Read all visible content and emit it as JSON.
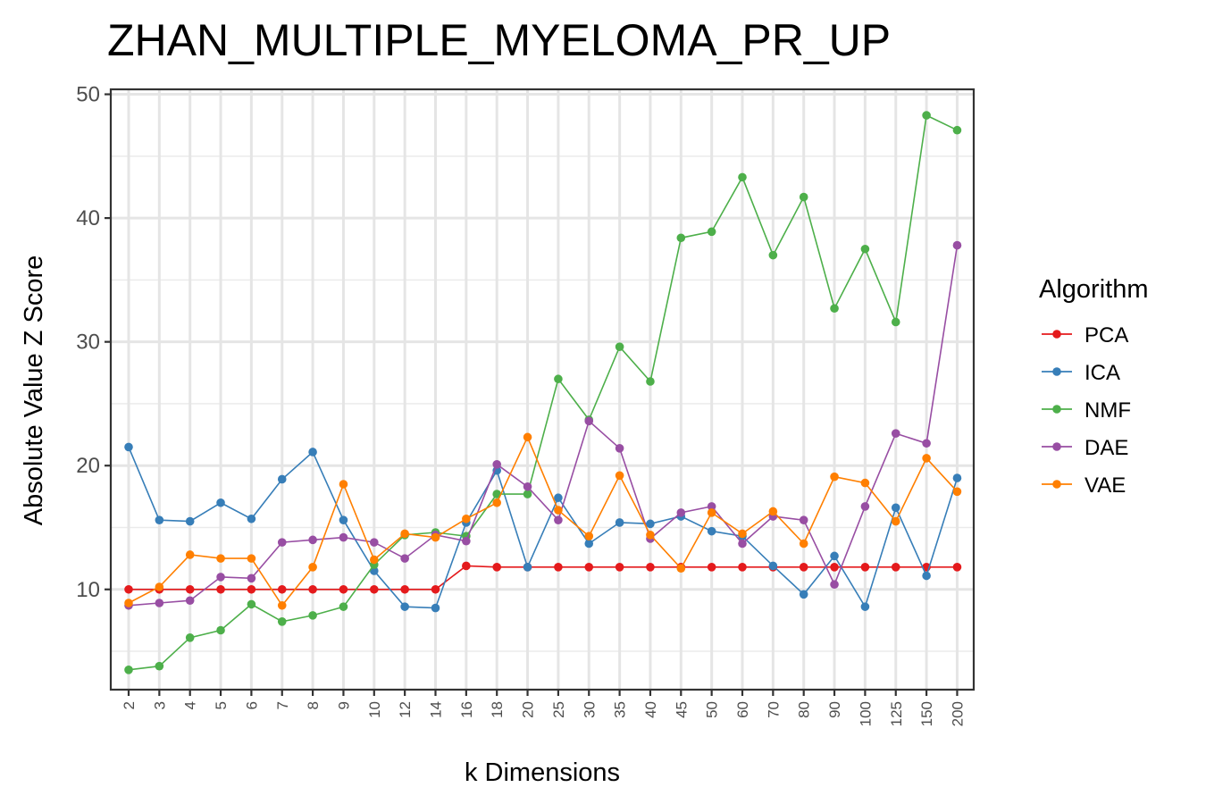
{
  "chart_data": {
    "type": "line",
    "title": "ZHAN_MULTIPLE_MYELOMA_PR_UP",
    "xlabel": "k Dimensions",
    "ylabel": "Absolute Value Z Score",
    "categories": [
      "2",
      "3",
      "4",
      "5",
      "6",
      "7",
      "8",
      "9",
      "10",
      "12",
      "14",
      "16",
      "18",
      "20",
      "25",
      "30",
      "35",
      "40",
      "45",
      "50",
      "60",
      "70",
      "80",
      "90",
      "100",
      "125",
      "150",
      "200"
    ],
    "y_ticks": [
      10,
      20,
      30,
      40,
      50
    ],
    "ylim": [
      1.9,
      50.4
    ],
    "grid": true,
    "legend": {
      "title": "Algorithm",
      "position": "right"
    },
    "series": [
      {
        "name": "PCA",
        "color": "#e41a1c",
        "values": [
          10.0,
          10.0,
          10.0,
          10.0,
          10.0,
          10.0,
          10.0,
          10.0,
          10.0,
          10.0,
          10.0,
          11.9,
          11.8,
          11.8,
          11.8,
          11.8,
          11.8,
          11.8,
          11.8,
          11.8,
          11.8,
          11.8,
          11.8,
          11.8,
          11.8,
          11.8,
          11.8,
          11.8
        ]
      },
      {
        "name": "ICA",
        "color": "#377eb8",
        "values": [
          21.5,
          15.6,
          15.5,
          17.0,
          15.7,
          18.9,
          21.1,
          15.6,
          11.5,
          8.6,
          8.5,
          15.4,
          19.6,
          11.8,
          17.4,
          13.7,
          15.4,
          15.3,
          15.9,
          14.7,
          14.3,
          11.9,
          9.6,
          12.7,
          8.6,
          16.6,
          11.1,
          19.0
        ]
      },
      {
        "name": "NMF",
        "color": "#4daf4a",
        "values": [
          3.5,
          3.8,
          6.1,
          6.7,
          8.8,
          7.4,
          7.9,
          8.6,
          12.0,
          14.4,
          14.6,
          14.3,
          17.7,
          17.7,
          27.0,
          23.7,
          29.6,
          26.8,
          38.4,
          38.9,
          43.3,
          37.0,
          41.7,
          32.7,
          37.5,
          31.6,
          48.3,
          47.1
        ]
      },
      {
        "name": "DAE",
        "color": "#984ea3",
        "values": [
          8.7,
          8.9,
          9.1,
          11.0,
          10.9,
          13.8,
          14.0,
          14.2,
          13.8,
          12.5,
          14.4,
          13.9,
          20.1,
          18.3,
          15.6,
          23.6,
          21.4,
          14.1,
          16.2,
          16.7,
          13.7,
          15.9,
          15.6,
          10.4,
          16.7,
          22.6,
          21.8,
          37.8
        ]
      },
      {
        "name": "VAE",
        "color": "#ff7f00",
        "values": [
          8.9,
          10.2,
          12.8,
          12.5,
          12.5,
          8.7,
          11.8,
          18.5,
          12.4,
          14.5,
          14.2,
          15.7,
          17.0,
          22.3,
          16.4,
          14.3,
          19.2,
          14.4,
          11.7,
          16.2,
          14.5,
          16.3,
          13.7,
          19.1,
          18.6,
          15.5,
          20.6,
          17.9
        ]
      }
    ]
  }
}
